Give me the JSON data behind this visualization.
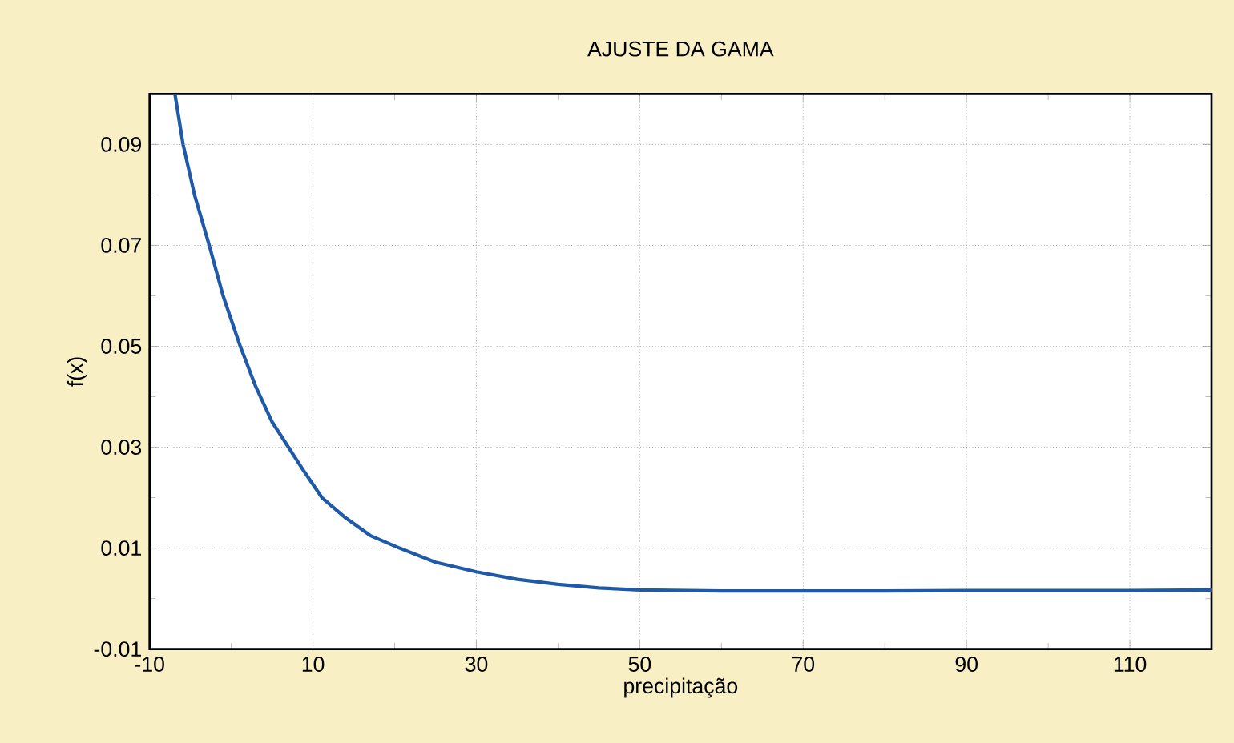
{
  "chart_data": {
    "type": "line",
    "title": "AJUSTE DA GAMA",
    "xlabel": "precipitação",
    "ylabel": "f(x)",
    "xlim": [
      -10,
      120
    ],
    "ylim": [
      -0.01,
      0.1
    ],
    "xticks": [
      -10,
      10,
      30,
      50,
      70,
      90,
      110
    ],
    "yticks": [
      -0.01,
      0.01,
      0.03,
      0.05,
      0.07,
      0.09
    ],
    "grid": true,
    "marker": "none",
    "line_style": "solid",
    "series": [
      {
        "color": "#1f5aa8",
        "x": [
          -6.9,
          -5.9,
          -4.5,
          -2.7,
          -1,
          1.1,
          3,
          5,
          7,
          9,
          11.1,
          14,
          17,
          20.6,
          25,
          30,
          35,
          40,
          45,
          50,
          60,
          70,
          80,
          90,
          100,
          110,
          120
        ],
        "values": [
          0.1,
          0.09,
          0.08,
          0.07,
          0.06,
          0.05,
          0.042,
          0.035,
          0.03,
          0.025,
          0.02,
          0.016,
          0.0125,
          0.01,
          0.0072,
          0.0053,
          0.0038,
          0.0028,
          0.0021,
          0.0017,
          0.0015,
          0.0015,
          0.0015,
          0.0016,
          0.0016,
          0.0016,
          0.0017
        ]
      }
    ]
  }
}
